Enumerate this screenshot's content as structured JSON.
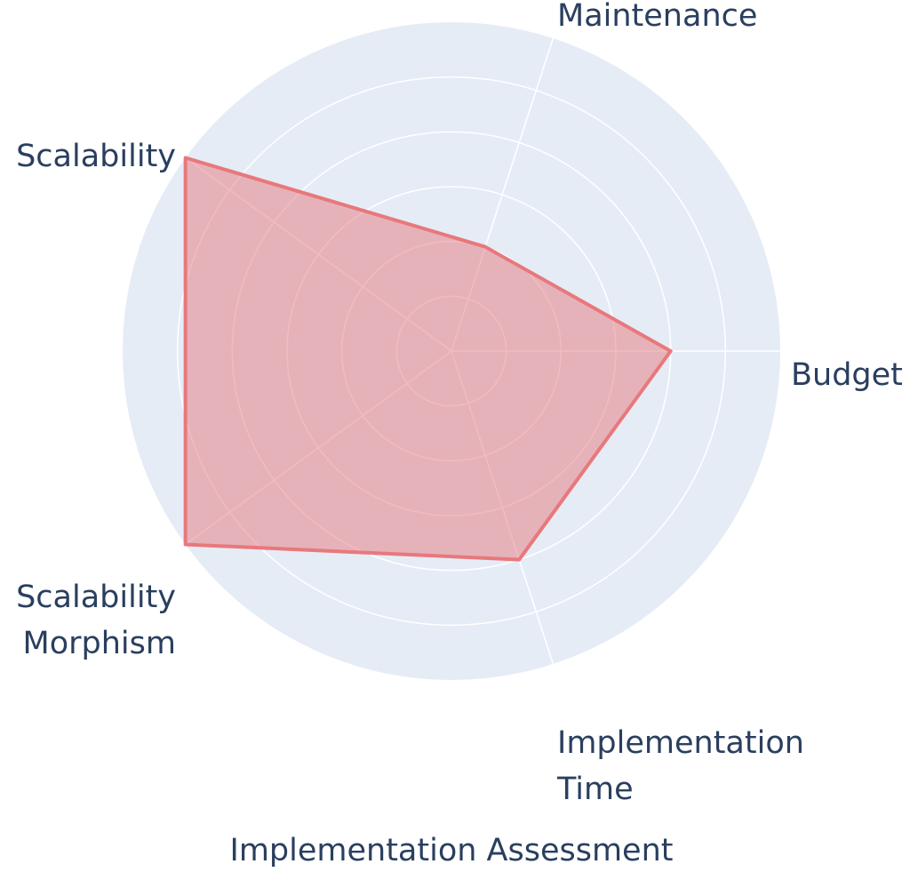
{
  "chart_data": {
    "type": "radar",
    "title": "Implementation Assessment",
    "categories": [
      "Budget",
      "Maintenance",
      "Scalability",
      "Scalability Morphism",
      "Implementation Time"
    ],
    "values": [
      4,
      2,
      6,
      6,
      4
    ],
    "color": "#e8787c",
    "rlim": [
      0,
      6
    ],
    "rticks": [
      1,
      2,
      3,
      4,
      5
    ],
    "grid": true,
    "background": "#e5ecf6"
  }
}
